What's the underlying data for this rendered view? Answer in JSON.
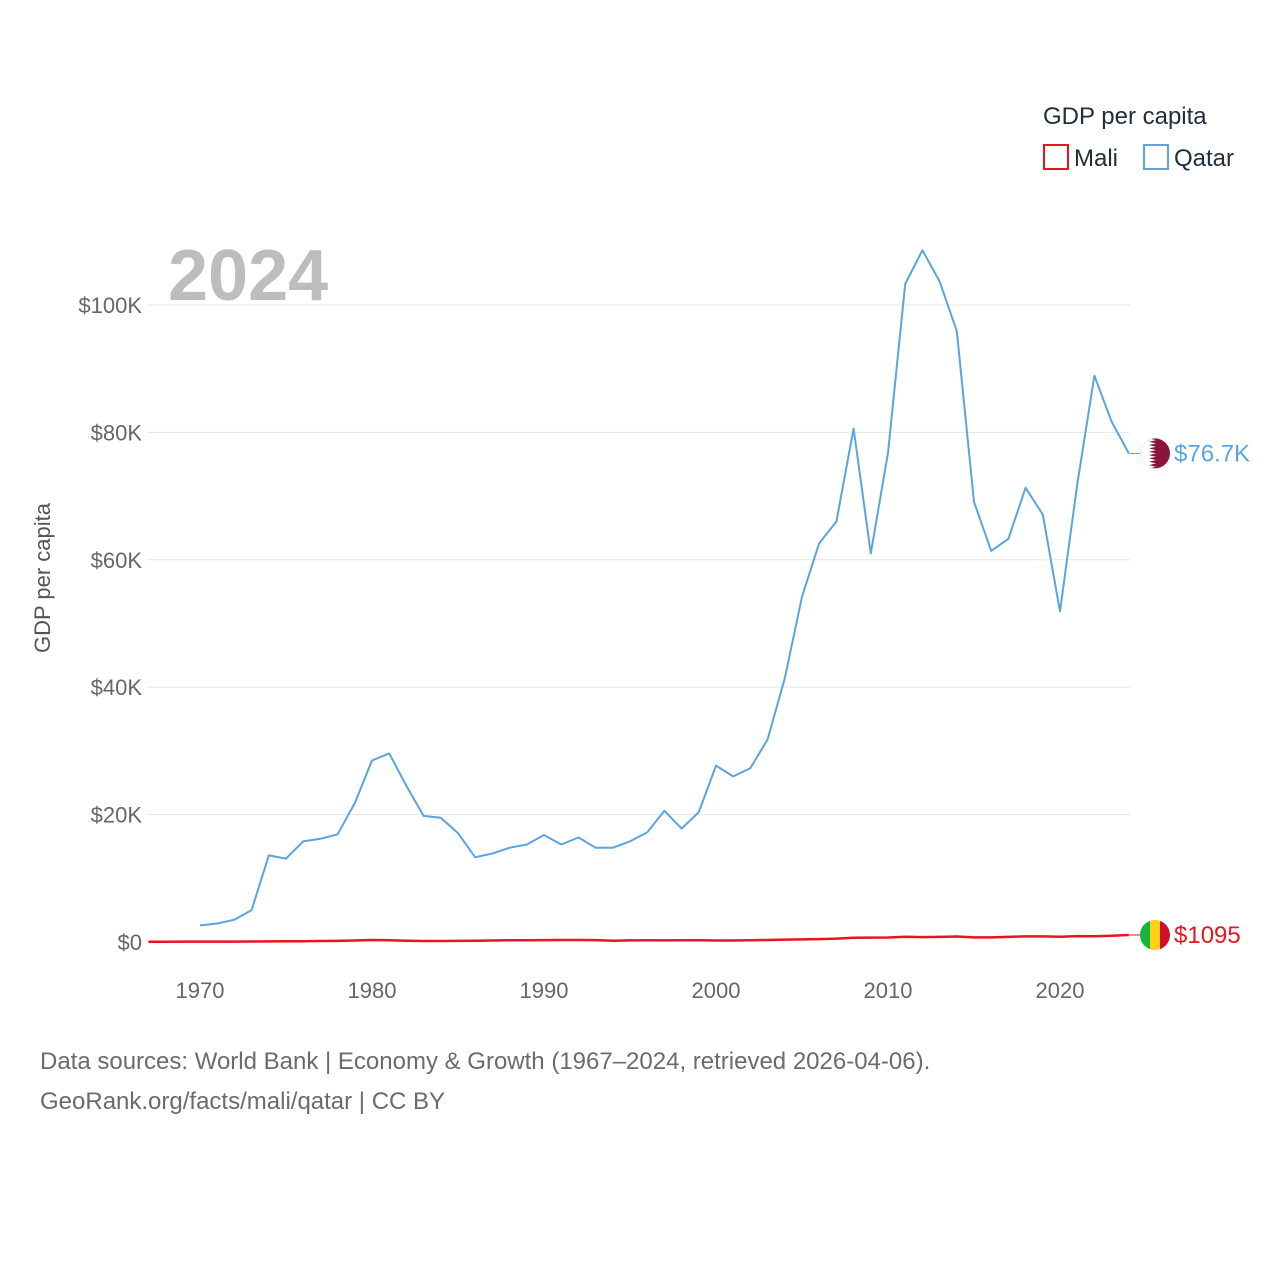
{
  "chart_data": {
    "type": "line",
    "title": "",
    "watermark_year": "2024",
    "ylabel": "GDP per capita",
    "xlabel": "",
    "xlim": [
      1967,
      2024
    ],
    "ylim": [
      0,
      110000
    ],
    "x_ticks": [
      1970,
      1980,
      1990,
      2000,
      2010,
      2020
    ],
    "x_tick_labels": [
      "1970",
      "1980",
      "1990",
      "2000",
      "2010",
      "2020"
    ],
    "y_ticks": [
      0,
      20000,
      40000,
      60000,
      80000,
      100000
    ],
    "y_tick_labels": [
      "$0",
      "$20K",
      "$40K",
      "$60K",
      "$80K",
      "$100K"
    ],
    "legend": {
      "title": "GDP per capita",
      "position": "top-right",
      "entries": [
        {
          "name": "Mali",
          "color": "#e8151d"
        },
        {
          "name": "Qatar",
          "color": "#5aa5e0"
        }
      ]
    },
    "series": [
      {
        "name": "Qatar",
        "color": "#5aa5e0",
        "end_label": "$76.7K",
        "flag_icon": "qatar-flag-icon",
        "x": [
          1970,
          1971,
          1972,
          1973,
          1974,
          1975,
          1976,
          1977,
          1978,
          1979,
          1980,
          1981,
          1982,
          1983,
          1984,
          1985,
          1986,
          1987,
          1988,
          1989,
          1990,
          1991,
          1992,
          1993,
          1994,
          1995,
          1996,
          1997,
          1998,
          1999,
          2000,
          2001,
          2002,
          2003,
          2004,
          2005,
          2006,
          2007,
          2008,
          2009,
          2010,
          2011,
          2012,
          2013,
          2014,
          2015,
          2016,
          2017,
          2018,
          2019,
          2020,
          2021,
          2022,
          2023,
          2024
        ],
        "values": [
          2600,
          2900,
          3500,
          5000,
          13600,
          13100,
          15800,
          16200,
          16900,
          21800,
          28500,
          29600,
          24500,
          19800,
          19500,
          17100,
          13300,
          13900,
          14800,
          15300,
          16800,
          15300,
          16400,
          14800,
          14800,
          15800,
          17200,
          20600,
          17800,
          20400,
          27700,
          26000,
          27300,
          31800,
          41400,
          54200,
          62600,
          66000,
          80600,
          61000,
          76800,
          103300,
          108600,
          103700,
          95900,
          69100,
          61400,
          63300,
          71300,
          67100,
          51900,
          71800,
          88900,
          81700,
          76700
        ]
      },
      {
        "name": "Mali",
        "color": "#e8151d",
        "end_label": "$1095",
        "flag_icon": "mali-flag-icon",
        "x": [
          1967,
          1968,
          1969,
          1970,
          1971,
          1972,
          1973,
          1974,
          1975,
          1976,
          1977,
          1978,
          1979,
          1980,
          1981,
          1982,
          1983,
          1984,
          1985,
          1986,
          1987,
          1988,
          1989,
          1990,
          1991,
          1992,
          1993,
          1994,
          1995,
          1996,
          1997,
          1998,
          1999,
          2000,
          2001,
          2002,
          2003,
          2004,
          2005,
          2006,
          2007,
          2008,
          2009,
          2010,
          2011,
          2012,
          2013,
          2014,
          2015,
          2016,
          2017,
          2018,
          2019,
          2020,
          2021,
          2022,
          2023,
          2024
        ],
        "values": [
          50,
          50,
          55,
          60,
          60,
          70,
          80,
          95,
          120,
          130,
          150,
          180,
          230,
          320,
          280,
          200,
          160,
          150,
          170,
          200,
          230,
          260,
          270,
          300,
          320,
          320,
          300,
          190,
          250,
          260,
          250,
          270,
          260,
          240,
          240,
          280,
          320,
          370,
          410,
          460,
          540,
          680,
          690,
          700,
          830,
          770,
          800,
          870,
          720,
          720,
          800,
          880,
          880,
          830,
          920,
          890,
          970,
          1095
        ]
      }
    ]
  },
  "footer": {
    "line1": "Data sources: World Bank | Economy & Growth (1967–2024, retrieved 2026-04-06).",
    "line2": "GeoRank.org/facts/mali/qatar | CC BY"
  }
}
